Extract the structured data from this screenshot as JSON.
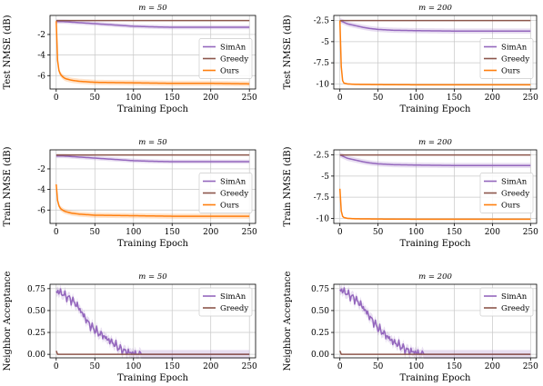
{
  "figure": {
    "colors": {
      "SimAn": "#9467bd",
      "Greedy": "#8c564b",
      "Ours": "#ff7f0e",
      "grid": "#c8c8c8"
    }
  },
  "chart_data": [
    {
      "type": "line",
      "row": 0,
      "col": 0,
      "title": "m = 50",
      "xlabel": "Training Epoch",
      "ylabel": "Test NMSE (dB)",
      "xlim": [
        -8,
        258
      ],
      "ylim": [
        -7.3,
        -0.15
      ],
      "xticks": [
        0,
        50,
        100,
        150,
        200,
        250
      ],
      "yticks": [
        -2,
        -4,
        -6
      ],
      "legend_position": "right-middle",
      "grid": true,
      "series": [
        {
          "name": "SimAn",
          "color": "#9467bd",
          "band": 0.2,
          "points": [
            [
              0,
              -0.75
            ],
            [
              10,
              -0.75
            ],
            [
              20,
              -0.8
            ],
            [
              30,
              -0.85
            ],
            [
              40,
              -0.9
            ],
            [
              50,
              -0.95
            ],
            [
              60,
              -1.0
            ],
            [
              70,
              -1.05
            ],
            [
              80,
              -1.1
            ],
            [
              90,
              -1.15
            ],
            [
              100,
              -1.2
            ],
            [
              120,
              -1.25
            ],
            [
              150,
              -1.3
            ],
            [
              200,
              -1.3
            ],
            [
              250,
              -1.3
            ]
          ]
        },
        {
          "name": "Greedy",
          "color": "#8c564b",
          "band": 0.05,
          "points": [
            [
              0,
              -0.65
            ],
            [
              250,
              -0.65
            ]
          ]
        },
        {
          "name": "Ours",
          "color": "#ff7f0e",
          "band": 0.25,
          "points": [
            [
              0,
              -0.7
            ],
            [
              1,
              -3.5
            ],
            [
              2,
              -4.8
            ],
            [
              3,
              -5.4
            ],
            [
              5,
              -5.8
            ],
            [
              8,
              -6.1
            ],
            [
              12,
              -6.3
            ],
            [
              20,
              -6.45
            ],
            [
              30,
              -6.55
            ],
            [
              50,
              -6.65
            ],
            [
              100,
              -6.7
            ],
            [
              150,
              -6.75
            ],
            [
              200,
              -6.75
            ],
            [
              250,
              -6.8
            ]
          ]
        }
      ]
    },
    {
      "type": "line",
      "row": 0,
      "col": 1,
      "title": "m = 200",
      "xlabel": "Training Epoch",
      "ylabel": "Test NMSE (dB)",
      "xlim": [
        -8,
        258
      ],
      "ylim": [
        -10.6,
        -1.9
      ],
      "xticks": [
        0,
        50,
        100,
        150,
        200,
        250
      ],
      "yticks": [
        -2.5,
        -5.0,
        -7.5,
        -10.0
      ],
      "legend_position": "right-middle",
      "grid": true,
      "series": [
        {
          "name": "SimAn",
          "color": "#9467bd",
          "band": 0.3,
          "points": [
            [
              0,
              -2.5
            ],
            [
              5,
              -2.7
            ],
            [
              10,
              -2.9
            ],
            [
              20,
              -3.1
            ],
            [
              30,
              -3.3
            ],
            [
              40,
              -3.45
            ],
            [
              50,
              -3.55
            ],
            [
              70,
              -3.65
            ],
            [
              100,
              -3.7
            ],
            [
              150,
              -3.75
            ],
            [
              200,
              -3.75
            ],
            [
              250,
              -3.75
            ]
          ]
        },
        {
          "name": "Greedy",
          "color": "#8c564b",
          "band": 0.05,
          "points": [
            [
              0,
              -2.5
            ],
            [
              250,
              -2.5
            ]
          ]
        },
        {
          "name": "Ours",
          "color": "#ff7f0e",
          "band": 0.1,
          "points": [
            [
              0,
              -2.5
            ],
            [
              1,
              -6.0
            ],
            [
              2,
              -8.5
            ],
            [
              3,
              -9.5
            ],
            [
              5,
              -9.9
            ],
            [
              10,
              -10.0
            ],
            [
              20,
              -10.05
            ],
            [
              50,
              -10.08
            ],
            [
              100,
              -10.1
            ],
            [
              150,
              -10.1
            ],
            [
              250,
              -10.1
            ]
          ]
        }
      ]
    },
    {
      "type": "line",
      "row": 1,
      "col": 0,
      "title": "m = 50",
      "xlabel": "Training Epoch",
      "ylabel": "Train NMSE (dB)",
      "xlim": [
        -8,
        258
      ],
      "ylim": [
        -7.3,
        -0.15
      ],
      "xticks": [
        0,
        50,
        100,
        150,
        200,
        250
      ],
      "yticks": [
        -2,
        -4,
        -6
      ],
      "legend_position": "right-middle",
      "grid": true,
      "series": [
        {
          "name": "SimAn",
          "color": "#9467bd",
          "band": 0.2,
          "points": [
            [
              0,
              -0.75
            ],
            [
              10,
              -0.75
            ],
            [
              20,
              -0.8
            ],
            [
              30,
              -0.85
            ],
            [
              40,
              -0.9
            ],
            [
              50,
              -0.95
            ],
            [
              60,
              -1.0
            ],
            [
              70,
              -1.05
            ],
            [
              80,
              -1.1
            ],
            [
              90,
              -1.15
            ],
            [
              100,
              -1.2
            ],
            [
              120,
              -1.25
            ],
            [
              150,
              -1.3
            ],
            [
              200,
              -1.3
            ],
            [
              250,
              -1.3
            ]
          ]
        },
        {
          "name": "Greedy",
          "color": "#8c564b",
          "band": 0.05,
          "points": [
            [
              0,
              -0.65
            ],
            [
              250,
              -0.65
            ]
          ]
        },
        {
          "name": "Ours",
          "color": "#ff7f0e",
          "band": 0.25,
          "points": [
            [
              0,
              -3.5
            ],
            [
              1,
              -4.6
            ],
            [
              2,
              -5.2
            ],
            [
              3,
              -5.5
            ],
            [
              5,
              -5.8
            ],
            [
              8,
              -6.0
            ],
            [
              12,
              -6.15
            ],
            [
              20,
              -6.3
            ],
            [
              30,
              -6.4
            ],
            [
              50,
              -6.5
            ],
            [
              100,
              -6.55
            ],
            [
              150,
              -6.6
            ],
            [
              200,
              -6.6
            ],
            [
              250,
              -6.6
            ]
          ]
        }
      ]
    },
    {
      "type": "line",
      "row": 1,
      "col": 1,
      "title": "m = 200",
      "xlabel": "Training Epoch",
      "ylabel": "Train NMSE (dB)",
      "xlim": [
        -8,
        258
      ],
      "ylim": [
        -10.6,
        -1.9
      ],
      "xticks": [
        0,
        50,
        100,
        150,
        200,
        250
      ],
      "yticks": [
        -2.5,
        -5.0,
        -7.5,
        -10.0
      ],
      "legend_position": "right-middle",
      "grid": true,
      "series": [
        {
          "name": "SimAn",
          "color": "#9467bd",
          "band": 0.3,
          "points": [
            [
              0,
              -2.5
            ],
            [
              5,
              -2.7
            ],
            [
              10,
              -2.9
            ],
            [
              20,
              -3.1
            ],
            [
              30,
              -3.3
            ],
            [
              40,
              -3.45
            ],
            [
              50,
              -3.55
            ],
            [
              70,
              -3.65
            ],
            [
              100,
              -3.7
            ],
            [
              150,
              -3.75
            ],
            [
              200,
              -3.75
            ],
            [
              250,
              -3.75
            ]
          ]
        },
        {
          "name": "Greedy",
          "color": "#8c564b",
          "band": 0.05,
          "points": [
            [
              0,
              -2.5
            ],
            [
              250,
              -2.5
            ]
          ]
        },
        {
          "name": "Ours",
          "color": "#ff7f0e",
          "band": 0.1,
          "points": [
            [
              0,
              -6.5
            ],
            [
              1,
              -8.5
            ],
            [
              2,
              -9.3
            ],
            [
              3,
              -9.7
            ],
            [
              5,
              -9.9
            ],
            [
              10,
              -10.0
            ],
            [
              20,
              -10.05
            ],
            [
              50,
              -10.08
            ],
            [
              100,
              -10.1
            ],
            [
              150,
              -10.1
            ],
            [
              250,
              -10.1
            ]
          ]
        }
      ]
    },
    {
      "type": "line",
      "row": 2,
      "col": 0,
      "title": "m = 50",
      "xlabel": "Training Epoch",
      "ylabel": "Neighbor Acceptance",
      "xlim": [
        -8,
        258
      ],
      "ylim": [
        -0.04,
        0.8
      ],
      "xticks": [
        0,
        50,
        100,
        150,
        200,
        250
      ],
      "yticks": [
        0.0,
        0.25,
        0.5,
        0.75
      ],
      "legend_position": "top-right",
      "grid": true,
      "series": [
        {
          "name": "SimAn",
          "color": "#9467bd",
          "band": 0.05,
          "points": [
            [
              0,
              0.72
            ],
            [
              5,
              0.71
            ],
            [
              10,
              0.68
            ],
            [
              15,
              0.65
            ],
            [
              20,
              0.62
            ],
            [
              25,
              0.58
            ],
            [
              30,
              0.52
            ],
            [
              35,
              0.45
            ],
            [
              40,
              0.38
            ],
            [
              45,
              0.32
            ],
            [
              50,
              0.28
            ],
            [
              55,
              0.24
            ],
            [
              60,
              0.22
            ],
            [
              65,
              0.18
            ],
            [
              70,
              0.15
            ],
            [
              75,
              0.12
            ],
            [
              80,
              0.08
            ],
            [
              85,
              0.05
            ],
            [
              90,
              0.03
            ],
            [
              95,
              0.02
            ],
            [
              100,
              0.01
            ],
            [
              105,
              0.0
            ],
            [
              250,
              0.0
            ]
          ]
        },
        {
          "name": "Greedy",
          "color": "#8c564b",
          "band": 0.0,
          "points": [
            [
              0,
              0.04
            ],
            [
              1,
              0.0
            ],
            [
              250,
              0.0
            ]
          ]
        }
      ]
    },
    {
      "type": "line",
      "row": 2,
      "col": 1,
      "title": "m = 200",
      "xlabel": "Training Epoch",
      "ylabel": "Neighbor Acceptance",
      "xlim": [
        -8,
        258
      ],
      "ylim": [
        -0.04,
        0.8
      ],
      "xticks": [
        0,
        50,
        100,
        150,
        200,
        250
      ],
      "yticks": [
        0.0,
        0.25,
        0.5,
        0.75
      ],
      "legend_position": "top-right",
      "grid": true,
      "series": [
        {
          "name": "SimAn",
          "color": "#9467bd",
          "band": 0.05,
          "points": [
            [
              0,
              0.74
            ],
            [
              5,
              0.72
            ],
            [
              10,
              0.69
            ],
            [
              15,
              0.66
            ],
            [
              20,
              0.63
            ],
            [
              25,
              0.59
            ],
            [
              30,
              0.54
            ],
            [
              35,
              0.48
            ],
            [
              40,
              0.42
            ],
            [
              45,
              0.36
            ],
            [
              50,
              0.3
            ],
            [
              55,
              0.26
            ],
            [
              60,
              0.22
            ],
            [
              65,
              0.18
            ],
            [
              70,
              0.14
            ],
            [
              75,
              0.12
            ],
            [
              80,
              0.09
            ],
            [
              85,
              0.06
            ],
            [
              90,
              0.04
            ],
            [
              95,
              0.03
            ],
            [
              100,
              0.02
            ],
            [
              105,
              0.01
            ],
            [
              110,
              0.0
            ],
            [
              250,
              0.0
            ]
          ]
        },
        {
          "name": "Greedy",
          "color": "#8c564b",
          "band": 0.0,
          "points": [
            [
              0,
              0.04
            ],
            [
              1,
              0.0
            ],
            [
              250,
              0.0
            ]
          ]
        }
      ]
    }
  ]
}
